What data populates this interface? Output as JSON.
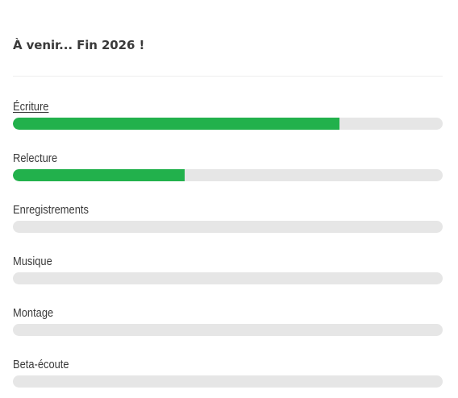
{
  "header": {
    "title": "À venir... Fin 2026 !"
  },
  "colors": {
    "bar_fill": "#22b14c",
    "bar_track": "#e6e6e6"
  },
  "progress": {
    "items": [
      {
        "label": "Écriture",
        "percent": 76,
        "link": true
      },
      {
        "label": "Relecture",
        "percent": 40,
        "link": false
      },
      {
        "label": "Enregistrements",
        "percent": 0,
        "link": false
      },
      {
        "label": "Musique",
        "percent": 0,
        "link": false
      },
      {
        "label": "Montage",
        "percent": 0,
        "link": false
      },
      {
        "label": "Beta-écoute",
        "percent": 0,
        "link": false
      }
    ]
  }
}
